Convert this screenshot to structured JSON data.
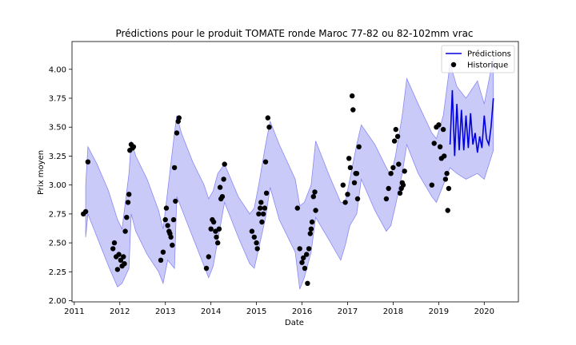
{
  "chart_data": {
    "type": "line",
    "title": "Prédictions pour le produit TOMATE ronde Maroc 77-82 ou 82-102mm vrac",
    "xlabel": "Date",
    "ylabel": "Prix moyen",
    "xlim": [
      2010.95,
      2020.75
    ],
    "ylim": [
      1.99,
      4.24
    ],
    "x_ticks": [
      "2011",
      "2012",
      "2013",
      "2014",
      "2015",
      "2016",
      "2017",
      "2018",
      "2019",
      "2020"
    ],
    "y_ticks": [
      "2.00",
      "2.25",
      "2.50",
      "2.75",
      "3.00",
      "3.25",
      "3.50",
      "3.75",
      "4.00"
    ],
    "grid": false,
    "legend": {
      "position": "top-right",
      "entries": [
        {
          "label": "Prédictions",
          "color": "#0000dd",
          "marker": "line"
        },
        {
          "label": "Historique",
          "color": "#000000",
          "marker": "dot"
        }
      ]
    },
    "colors": {
      "band": "#8a8af2",
      "prediction": "#0000dd",
      "history": "#000000"
    },
    "band": {
      "x": [
        2011.25,
        2011.3,
        2011.5,
        2011.75,
        2011.95,
        2012.05,
        2012.2,
        2012.25,
        2012.35,
        2012.6,
        2012.85,
        2012.95,
        2013.05,
        2013.2,
        2013.25,
        2013.35,
        2013.6,
        2013.85,
        2013.95,
        2014.05,
        2014.15,
        2014.3,
        2014.6,
        2014.85,
        2014.95,
        2015.05,
        2015.2,
        2015.3,
        2015.5,
        2015.85,
        2015.95,
        2016.05,
        2016.2,
        2016.3,
        2016.6,
        2016.85,
        2016.95,
        2017.05,
        2017.2,
        2017.3,
        2017.6,
        2017.85,
        2017.95,
        2018.05,
        2018.2,
        2018.3,
        2018.55,
        2018.85,
        2018.95,
        2019.1,
        2019.25,
        2019.4,
        2019.6,
        2019.85,
        2020.0,
        2020.2
      ],
      "upper": [
        3.0,
        3.33,
        3.18,
        2.95,
        2.7,
        2.62,
        3.1,
        3.38,
        3.25,
        3.05,
        2.78,
        2.62,
        2.95,
        3.45,
        3.6,
        3.45,
        3.2,
        3.0,
        2.88,
        2.95,
        3.1,
        3.18,
        2.9,
        2.75,
        2.8,
        3.0,
        3.35,
        3.55,
        3.35,
        3.05,
        2.82,
        2.85,
        3.0,
        3.38,
        3.08,
        2.85,
        2.85,
        3.05,
        3.35,
        3.52,
        3.35,
        3.15,
        3.08,
        3.25,
        3.6,
        3.92,
        3.7,
        3.45,
        3.4,
        3.6,
        4.05,
        3.85,
        3.75,
        3.9,
        3.7,
        4.1
      ],
      "lower": [
        2.55,
        2.75,
        2.55,
        2.3,
        2.12,
        2.15,
        2.28,
        2.75,
        2.6,
        2.4,
        2.25,
        2.15,
        2.35,
        2.28,
        2.9,
        2.8,
        2.55,
        2.3,
        2.2,
        2.3,
        2.52,
        2.85,
        2.55,
        2.32,
        2.28,
        2.45,
        2.72,
        2.98,
        2.7,
        2.42,
        2.1,
        2.2,
        2.42,
        2.72,
        2.52,
        2.35,
        2.48,
        2.65,
        2.75,
        3.05,
        2.78,
        2.6,
        2.65,
        2.82,
        3.1,
        3.35,
        3.1,
        2.9,
        2.85,
        3.0,
        3.15,
        3.1,
        3.05,
        3.1,
        3.05,
        3.3
      ]
    },
    "prediction": {
      "x": [
        2019.25,
        2019.3,
        2019.35,
        2019.4,
        2019.45,
        2019.5,
        2019.55,
        2019.6,
        2019.65,
        2019.7,
        2019.75,
        2019.8,
        2019.85,
        2019.9,
        2019.95,
        2020.0,
        2020.05,
        2020.1,
        2020.15,
        2020.2
      ],
      "y": [
        3.35,
        3.82,
        3.25,
        3.7,
        3.3,
        3.65,
        3.3,
        3.6,
        3.32,
        3.62,
        3.35,
        3.45,
        3.28,
        3.42,
        3.32,
        3.6,
        3.4,
        3.35,
        3.5,
        3.75
      ]
    },
    "history": {
      "x": [
        2011.2,
        2011.25,
        2011.3,
        2011.85,
        2011.88,
        2011.92,
        2011.95,
        2011.98,
        2012.02,
        2012.05,
        2012.08,
        2012.1,
        2012.12,
        2012.15,
        2012.18,
        2012.2,
        2012.22,
        2012.25,
        2012.28,
        2012.3,
        2012.9,
        2012.95,
        2013.0,
        2013.02,
        2013.05,
        2013.08,
        2013.1,
        2013.12,
        2013.15,
        2013.18,
        2013.2,
        2013.22,
        2013.25,
        2013.28,
        2013.3,
        2013.9,
        2013.95,
        2014.0,
        2014.03,
        2014.06,
        2014.1,
        2014.12,
        2014.15,
        2014.18,
        2014.2,
        2014.22,
        2014.25,
        2014.28,
        2014.3,
        2014.9,
        2014.95,
        2015.0,
        2015.02,
        2015.05,
        2015.08,
        2015.1,
        2015.12,
        2015.15,
        2015.18,
        2015.2,
        2015.22,
        2015.25,
        2015.28,
        2015.9,
        2015.95,
        2016.0,
        2016.03,
        2016.06,
        2016.1,
        2016.12,
        2016.15,
        2016.18,
        2016.2,
        2016.22,
        2016.25,
        2016.28,
        2016.3,
        2016.9,
        2016.95,
        2017.0,
        2017.03,
        2017.06,
        2017.1,
        2017.12,
        2017.15,
        2017.18,
        2017.2,
        2017.22,
        2017.25,
        2017.85,
        2017.9,
        2017.95,
        2018.0,
        2018.03,
        2018.06,
        2018.1,
        2018.12,
        2018.15,
        2018.18,
        2018.2,
        2018.22,
        2018.25,
        2018.85,
        2018.9,
        2018.95,
        2019.0,
        2019.03,
        2019.06,
        2019.1,
        2019.12,
        2019.15,
        2019.18,
        2019.2,
        2019.22
      ],
      "y": [
        2.75,
        2.77,
        3.2,
        2.45,
        2.5,
        2.38,
        2.27,
        2.4,
        2.35,
        2.3,
        2.38,
        2.32,
        2.6,
        2.72,
        2.85,
        2.92,
        3.3,
        3.35,
        3.32,
        3.33,
        2.35,
        2.42,
        2.7,
        2.8,
        2.65,
        2.6,
        2.58,
        2.55,
        2.48,
        2.7,
        3.15,
        2.86,
        3.45,
        3.55,
        3.58,
        2.28,
        2.38,
        2.62,
        2.7,
        2.68,
        2.6,
        2.55,
        2.5,
        2.62,
        2.98,
        2.88,
        2.9,
        3.05,
        3.18,
        2.6,
        2.55,
        2.5,
        2.45,
        2.75,
        2.8,
        2.85,
        2.68,
        2.75,
        2.8,
        3.2,
        2.93,
        3.58,
        3.5,
        2.8,
        2.45,
        2.33,
        2.37,
        2.28,
        2.4,
        2.15,
        2.45,
        2.58,
        2.62,
        2.68,
        2.9,
        2.94,
        2.78,
        3.0,
        2.85,
        2.92,
        3.23,
        3.15,
        3.77,
        3.65,
        3.02,
        3.1,
        3.1,
        2.88,
        3.33,
        2.88,
        2.97,
        3.1,
        3.15,
        3.38,
        3.48,
        3.42,
        3.18,
        2.93,
        2.97,
        3.02,
        3.0,
        3.12,
        3.0,
        3.36,
        3.5,
        3.52,
        3.33,
        3.23,
        3.48,
        3.25,
        3.05,
        3.1,
        2.78,
        2.97
      ]
    }
  }
}
